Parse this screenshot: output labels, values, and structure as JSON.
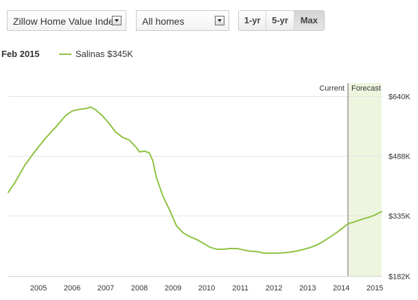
{
  "toolbar": {
    "index_select": {
      "value": "Zillow Home Value Index"
    },
    "home_type_select": {
      "value": "All homes"
    },
    "range_buttons": [
      {
        "label": "1-yr",
        "active": false
      },
      {
        "label": "5-yr",
        "active": false
      },
      {
        "label": "Max",
        "active": true
      }
    ]
  },
  "legend": {
    "date": "Feb 2015",
    "series_label": "Salinas $345K"
  },
  "colors": {
    "series_line": "#8dc13f",
    "forecast_band": "#eef5df",
    "current_marker": "#999999",
    "grid": "#e4e4e4"
  },
  "chart_data": {
    "type": "line",
    "title": "",
    "xlabel": "",
    "ylabel": "",
    "x_tick_labels": [
      "2005",
      "2006",
      "2007",
      "2008",
      "2009",
      "2010",
      "2011",
      "2012",
      "2013",
      "2014",
      "2015"
    ],
    "y_tick_labels": [
      "$640K",
      "$488K",
      "$335K",
      "$182K"
    ],
    "ylim": [
      182,
      640
    ],
    "xlim": [
      2004.1,
      2015.2
    ],
    "grid": true,
    "current_label": "Current",
    "forecast_label": "Forecast",
    "current_x": 2014.2,
    "series": [
      {
        "name": "Salinas $345K",
        "points": [
          [
            2004.1,
            395
          ],
          [
            2004.3,
            420
          ],
          [
            2004.6,
            465
          ],
          [
            2004.9,
            500
          ],
          [
            2005.2,
            532
          ],
          [
            2005.5,
            560
          ],
          [
            2005.8,
            590
          ],
          [
            2006.0,
            602
          ],
          [
            2006.2,
            606
          ],
          [
            2006.4,
            608
          ],
          [
            2006.55,
            612
          ],
          [
            2006.7,
            605
          ],
          [
            2006.9,
            590
          ],
          [
            2007.1,
            570
          ],
          [
            2007.3,
            548
          ],
          [
            2007.5,
            535
          ],
          [
            2007.7,
            528
          ],
          [
            2007.9,
            510
          ],
          [
            2008.0,
            498
          ],
          [
            2008.15,
            500
          ],
          [
            2008.3,
            495
          ],
          [
            2008.4,
            475
          ],
          [
            2008.5,
            435
          ],
          [
            2008.7,
            385
          ],
          [
            2008.9,
            350
          ],
          [
            2009.1,
            310
          ],
          [
            2009.3,
            292
          ],
          [
            2009.5,
            282
          ],
          [
            2009.7,
            275
          ],
          [
            2009.9,
            265
          ],
          [
            2010.1,
            255
          ],
          [
            2010.3,
            250
          ],
          [
            2010.5,
            250
          ],
          [
            2010.7,
            252
          ],
          [
            2010.9,
            252
          ],
          [
            2011.1,
            248
          ],
          [
            2011.3,
            245
          ],
          [
            2011.5,
            244
          ],
          [
            2011.7,
            240
          ],
          [
            2011.9,
            240
          ],
          [
            2012.1,
            240
          ],
          [
            2012.3,
            241
          ],
          [
            2012.5,
            243
          ],
          [
            2012.7,
            246
          ],
          [
            2012.9,
            250
          ],
          [
            2013.1,
            255
          ],
          [
            2013.3,
            262
          ],
          [
            2013.5,
            272
          ],
          [
            2013.7,
            283
          ],
          [
            2013.9,
            295
          ],
          [
            2014.1,
            308
          ],
          [
            2014.2,
            315
          ],
          [
            2014.4,
            320
          ],
          [
            2014.6,
            326
          ],
          [
            2014.8,
            331
          ],
          [
            2015.0,
            337
          ],
          [
            2015.2,
            346
          ]
        ]
      }
    ]
  }
}
